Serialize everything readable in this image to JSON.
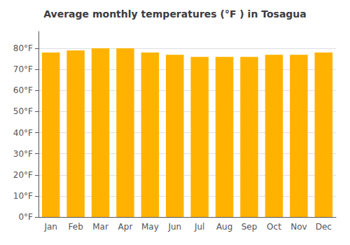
{
  "chart_data": {
    "type": "bar",
    "title": "Average monthly temperatures (°F ) in Tosagua",
    "categories": [
      "Jan",
      "Feb",
      "Mar",
      "Apr",
      "May",
      "Jun",
      "Jul",
      "Aug",
      "Sep",
      "Oct",
      "Nov",
      "Dec"
    ],
    "values": [
      78,
      79,
      80,
      80,
      78,
      77,
      76,
      76,
      76,
      77,
      77,
      78
    ],
    "color": "#FFB300",
    "ylim": [
      0,
      88
    ],
    "yticks": [
      {
        "value": 0,
        "label": "0°F"
      },
      {
        "value": 10,
        "label": "10°F"
      },
      {
        "value": 20,
        "label": "20°F"
      },
      {
        "value": 30,
        "label": "30°F"
      },
      {
        "value": 40,
        "label": "40°F"
      },
      {
        "value": 50,
        "label": "50°F"
      },
      {
        "value": 60,
        "label": "60°F"
      },
      {
        "value": 70,
        "label": "70°F"
      },
      {
        "value": 80,
        "label": "80°F"
      }
    ],
    "grid": true
  }
}
